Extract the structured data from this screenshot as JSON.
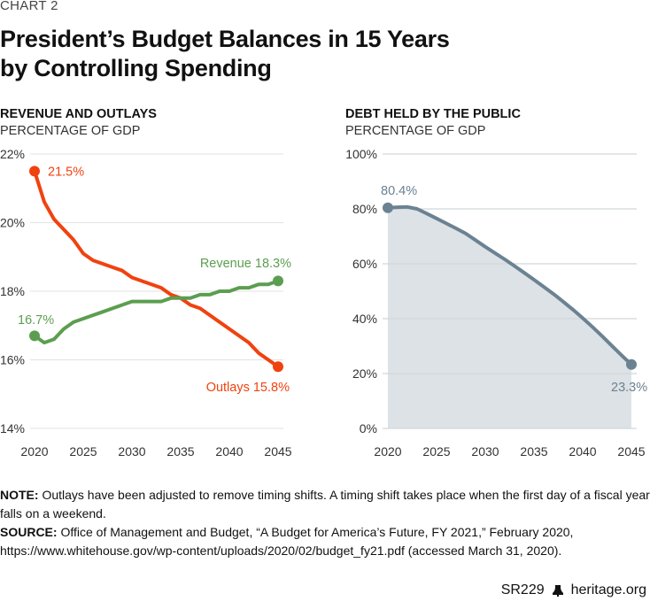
{
  "chart_label": "CHART 2",
  "title_line1": "President’s Budget Balances in 15 Years",
  "title_line2": "by Controlling Spending",
  "left_panel": {
    "title": "REVENUE AND OUTLAYS",
    "subtitle": "PERCENTAGE OF GDP"
  },
  "right_panel": {
    "title": "DEBT HELD BY THE PUBLIC",
    "subtitle": "PERCENTAGE OF GDP"
  },
  "colors": {
    "outlays": "#f0420f",
    "revenue": "#5c9e50",
    "debt_line": "#6b8292",
    "debt_fill": "#dde2e6",
    "grid": "#e6e6e6",
    "tick": "#333333"
  },
  "chart_data": [
    {
      "type": "line",
      "title": "REVENUE AND OUTLAYS",
      "subtitle": "PERCENTAGE OF GDP",
      "xlabel": "",
      "ylabel": "",
      "xlim": [
        2020,
        2045
      ],
      "ylim": [
        14,
        22
      ],
      "grid": true,
      "x_ticks": [
        2020,
        2025,
        2030,
        2035,
        2040,
        2045
      ],
      "x_tick_labels": [
        "2020",
        "2025",
        "2030",
        "2035",
        "2040",
        "2045"
      ],
      "y_ticks": [
        14,
        16,
        18,
        20,
        22
      ],
      "y_tick_labels": [
        "14%",
        "16%",
        "18%",
        "20%",
        "22%"
      ],
      "x": [
        2020,
        2021,
        2022,
        2023,
        2024,
        2025,
        2026,
        2027,
        2028,
        2029,
        2030,
        2031,
        2032,
        2033,
        2034,
        2035,
        2036,
        2037,
        2038,
        2039,
        2040,
        2041,
        2042,
        2043,
        2044,
        2045
      ],
      "series": [
        {
          "name": "Outlays",
          "color": "#f0420f",
          "values": [
            21.5,
            20.6,
            20.1,
            19.8,
            19.5,
            19.1,
            18.9,
            18.8,
            18.7,
            18.6,
            18.4,
            18.3,
            18.2,
            18.1,
            17.9,
            17.8,
            17.6,
            17.5,
            17.3,
            17.1,
            16.9,
            16.7,
            16.5,
            16.2,
            16.0,
            15.8
          ],
          "start_label": "21.5%",
          "end_label": "Outlays 15.8%"
        },
        {
          "name": "Revenue",
          "color": "#5c9e50",
          "values": [
            16.7,
            16.5,
            16.6,
            16.9,
            17.1,
            17.2,
            17.3,
            17.4,
            17.5,
            17.6,
            17.7,
            17.7,
            17.7,
            17.7,
            17.8,
            17.8,
            17.8,
            17.9,
            17.9,
            18.0,
            18.0,
            18.1,
            18.1,
            18.2,
            18.2,
            18.3
          ],
          "start_label": "16.7%",
          "end_label": "Revenue 18.3%"
        }
      ]
    },
    {
      "type": "area",
      "title": "DEBT HELD BY THE PUBLIC",
      "subtitle": "PERCENTAGE OF GDP",
      "xlabel": "",
      "ylabel": "",
      "xlim": [
        2020,
        2045
      ],
      "ylim": [
        0,
        100
      ],
      "grid": true,
      "x_ticks": [
        2020,
        2025,
        2030,
        2035,
        2040,
        2045
      ],
      "x_tick_labels": [
        "2020",
        "2025",
        "2030",
        "2035",
        "2040",
        "2045"
      ],
      "y_ticks": [
        0,
        20,
        40,
        60,
        80,
        100
      ],
      "y_tick_labels": [
        "0%",
        "20%",
        "40%",
        "60%",
        "80%",
        "100%"
      ],
      "x": [
        2020,
        2021,
        2022,
        2023,
        2024,
        2025,
        2026,
        2027,
        2028,
        2029,
        2030,
        2031,
        2032,
        2033,
        2034,
        2035,
        2036,
        2037,
        2038,
        2039,
        2040,
        2041,
        2042,
        2043,
        2044,
        2045
      ],
      "series": [
        {
          "name": "Debt held by the public",
          "color": "#6b8292",
          "values": [
            80.4,
            80.6,
            80.7,
            80.0,
            78.3,
            76.5,
            74.7,
            72.9,
            71.0,
            68.6,
            66.2,
            63.9,
            61.6,
            59.2,
            56.7,
            54.2,
            51.6,
            49.0,
            46.2,
            43.3,
            40.2,
            37.0,
            33.6,
            30.1,
            26.6,
            23.3
          ],
          "start_label": "80.4%",
          "end_label": "23.3%"
        }
      ]
    }
  ],
  "notes": {
    "note_label": "NOTE:",
    "note_text": " Outlays have been adjusted to remove timing shifts. A timing shift takes place when the first day of a fiscal year falls on a weekend.",
    "source_label": "SOURCE:",
    "source_text": " Office of Management and Budget, “A Budget for America’s Future, FY 2021,” February 2020, https://www.whitehouse.gov/wp-content/uploads/2020/02/budget_fy21.pdf (accessed March 31, 2020)."
  },
  "footer": {
    "code": "SR229",
    "site": "heritage.org",
    "logo_icon": "liberty-bell-icon"
  }
}
